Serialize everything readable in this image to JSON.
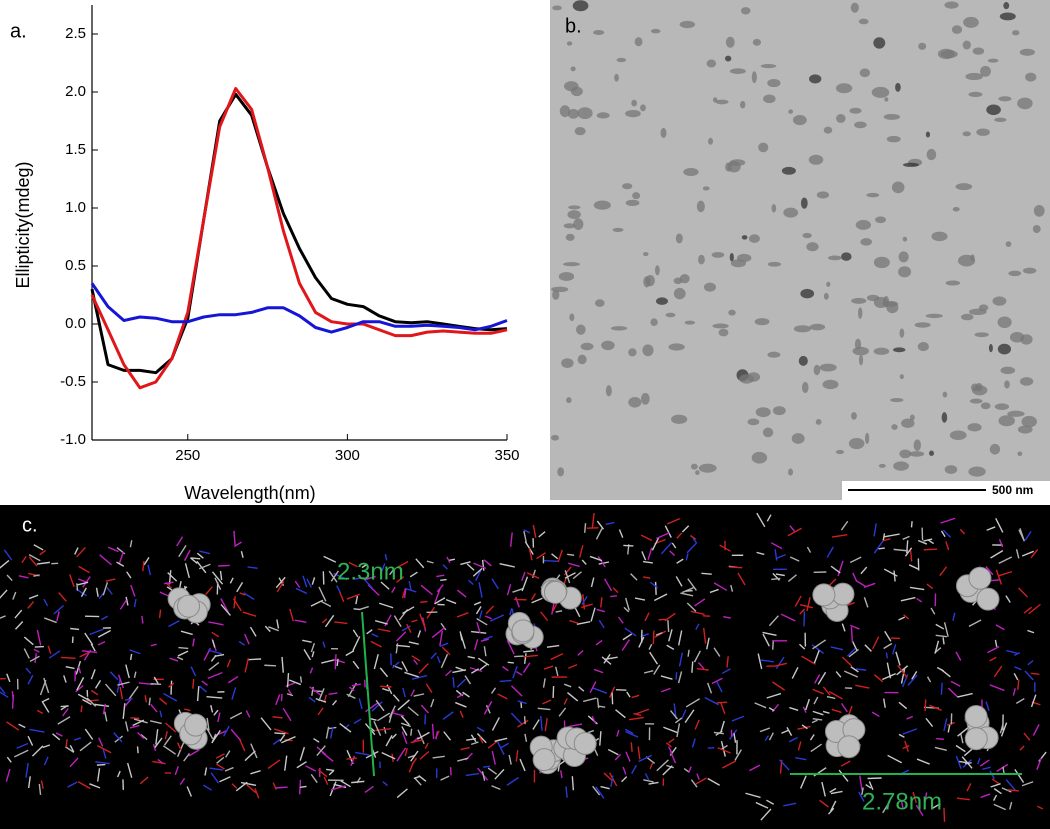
{
  "chart_data": {
    "type": "line",
    "panel_label": "a.",
    "x_label": "Wavelength(nm)",
    "y_label": "Ellipticity(mdeg)",
    "x": [
      220,
      225,
      230,
      235,
      240,
      245,
      250,
      255,
      260,
      265,
      270,
      275,
      280,
      285,
      290,
      295,
      300,
      305,
      310,
      315,
      320,
      325,
      330,
      335,
      340,
      345,
      350
    ],
    "series": [
      {
        "color": "#000000",
        "values": [
          0.3,
          -0.35,
          -0.4,
          -0.4,
          -0.42,
          -0.3,
          0.05,
          0.9,
          1.75,
          1.98,
          1.8,
          1.35,
          0.95,
          0.65,
          0.4,
          0.22,
          0.17,
          0.15,
          0.07,
          0.02,
          0.01,
          0.02,
          0.0,
          -0.02,
          -0.04,
          -0.05,
          -0.04
        ]
      },
      {
        "color": "#e0161b",
        "values": [
          0.25,
          -0.05,
          -0.35,
          -0.55,
          -0.5,
          -0.3,
          0.1,
          0.9,
          1.7,
          2.03,
          1.85,
          1.35,
          0.8,
          0.35,
          0.1,
          0.02,
          0.0,
          0.0,
          -0.05,
          -0.1,
          -0.1,
          -0.07,
          -0.06,
          -0.07,
          -0.08,
          -0.08,
          -0.05
        ]
      },
      {
        "color": "#1515d8",
        "values": [
          0.35,
          0.15,
          0.03,
          0.06,
          0.05,
          0.02,
          0.02,
          0.06,
          0.08,
          0.08,
          0.1,
          0.14,
          0.14,
          0.07,
          -0.03,
          -0.07,
          -0.03,
          0.02,
          0.02,
          -0.02,
          -0.02,
          -0.01,
          -0.02,
          -0.03,
          -0.05,
          -0.02,
          0.03
        ]
      }
    ],
    "xlim": [
      220,
      350
    ],
    "xticks": [
      250,
      300,
      350
    ],
    "ylim": [
      -1.0,
      2.75
    ],
    "yticks": [
      {
        "value": -1,
        "label": "-1.0"
      },
      -0.5,
      {
        "value": 0,
        "label": "0.0"
      },
      0.5,
      {
        "value": 1,
        "label": "1.0"
      },
      1.5,
      {
        "value": 2,
        "label": "2.0"
      },
      2.5
    ],
    "grid": false
  },
  "panel_b": {
    "label": "b.",
    "scale_bar": "500 nm"
  },
  "panel_c": {
    "label": "c.",
    "annotations": [
      "2.3nm",
      "2.78nm"
    ]
  }
}
